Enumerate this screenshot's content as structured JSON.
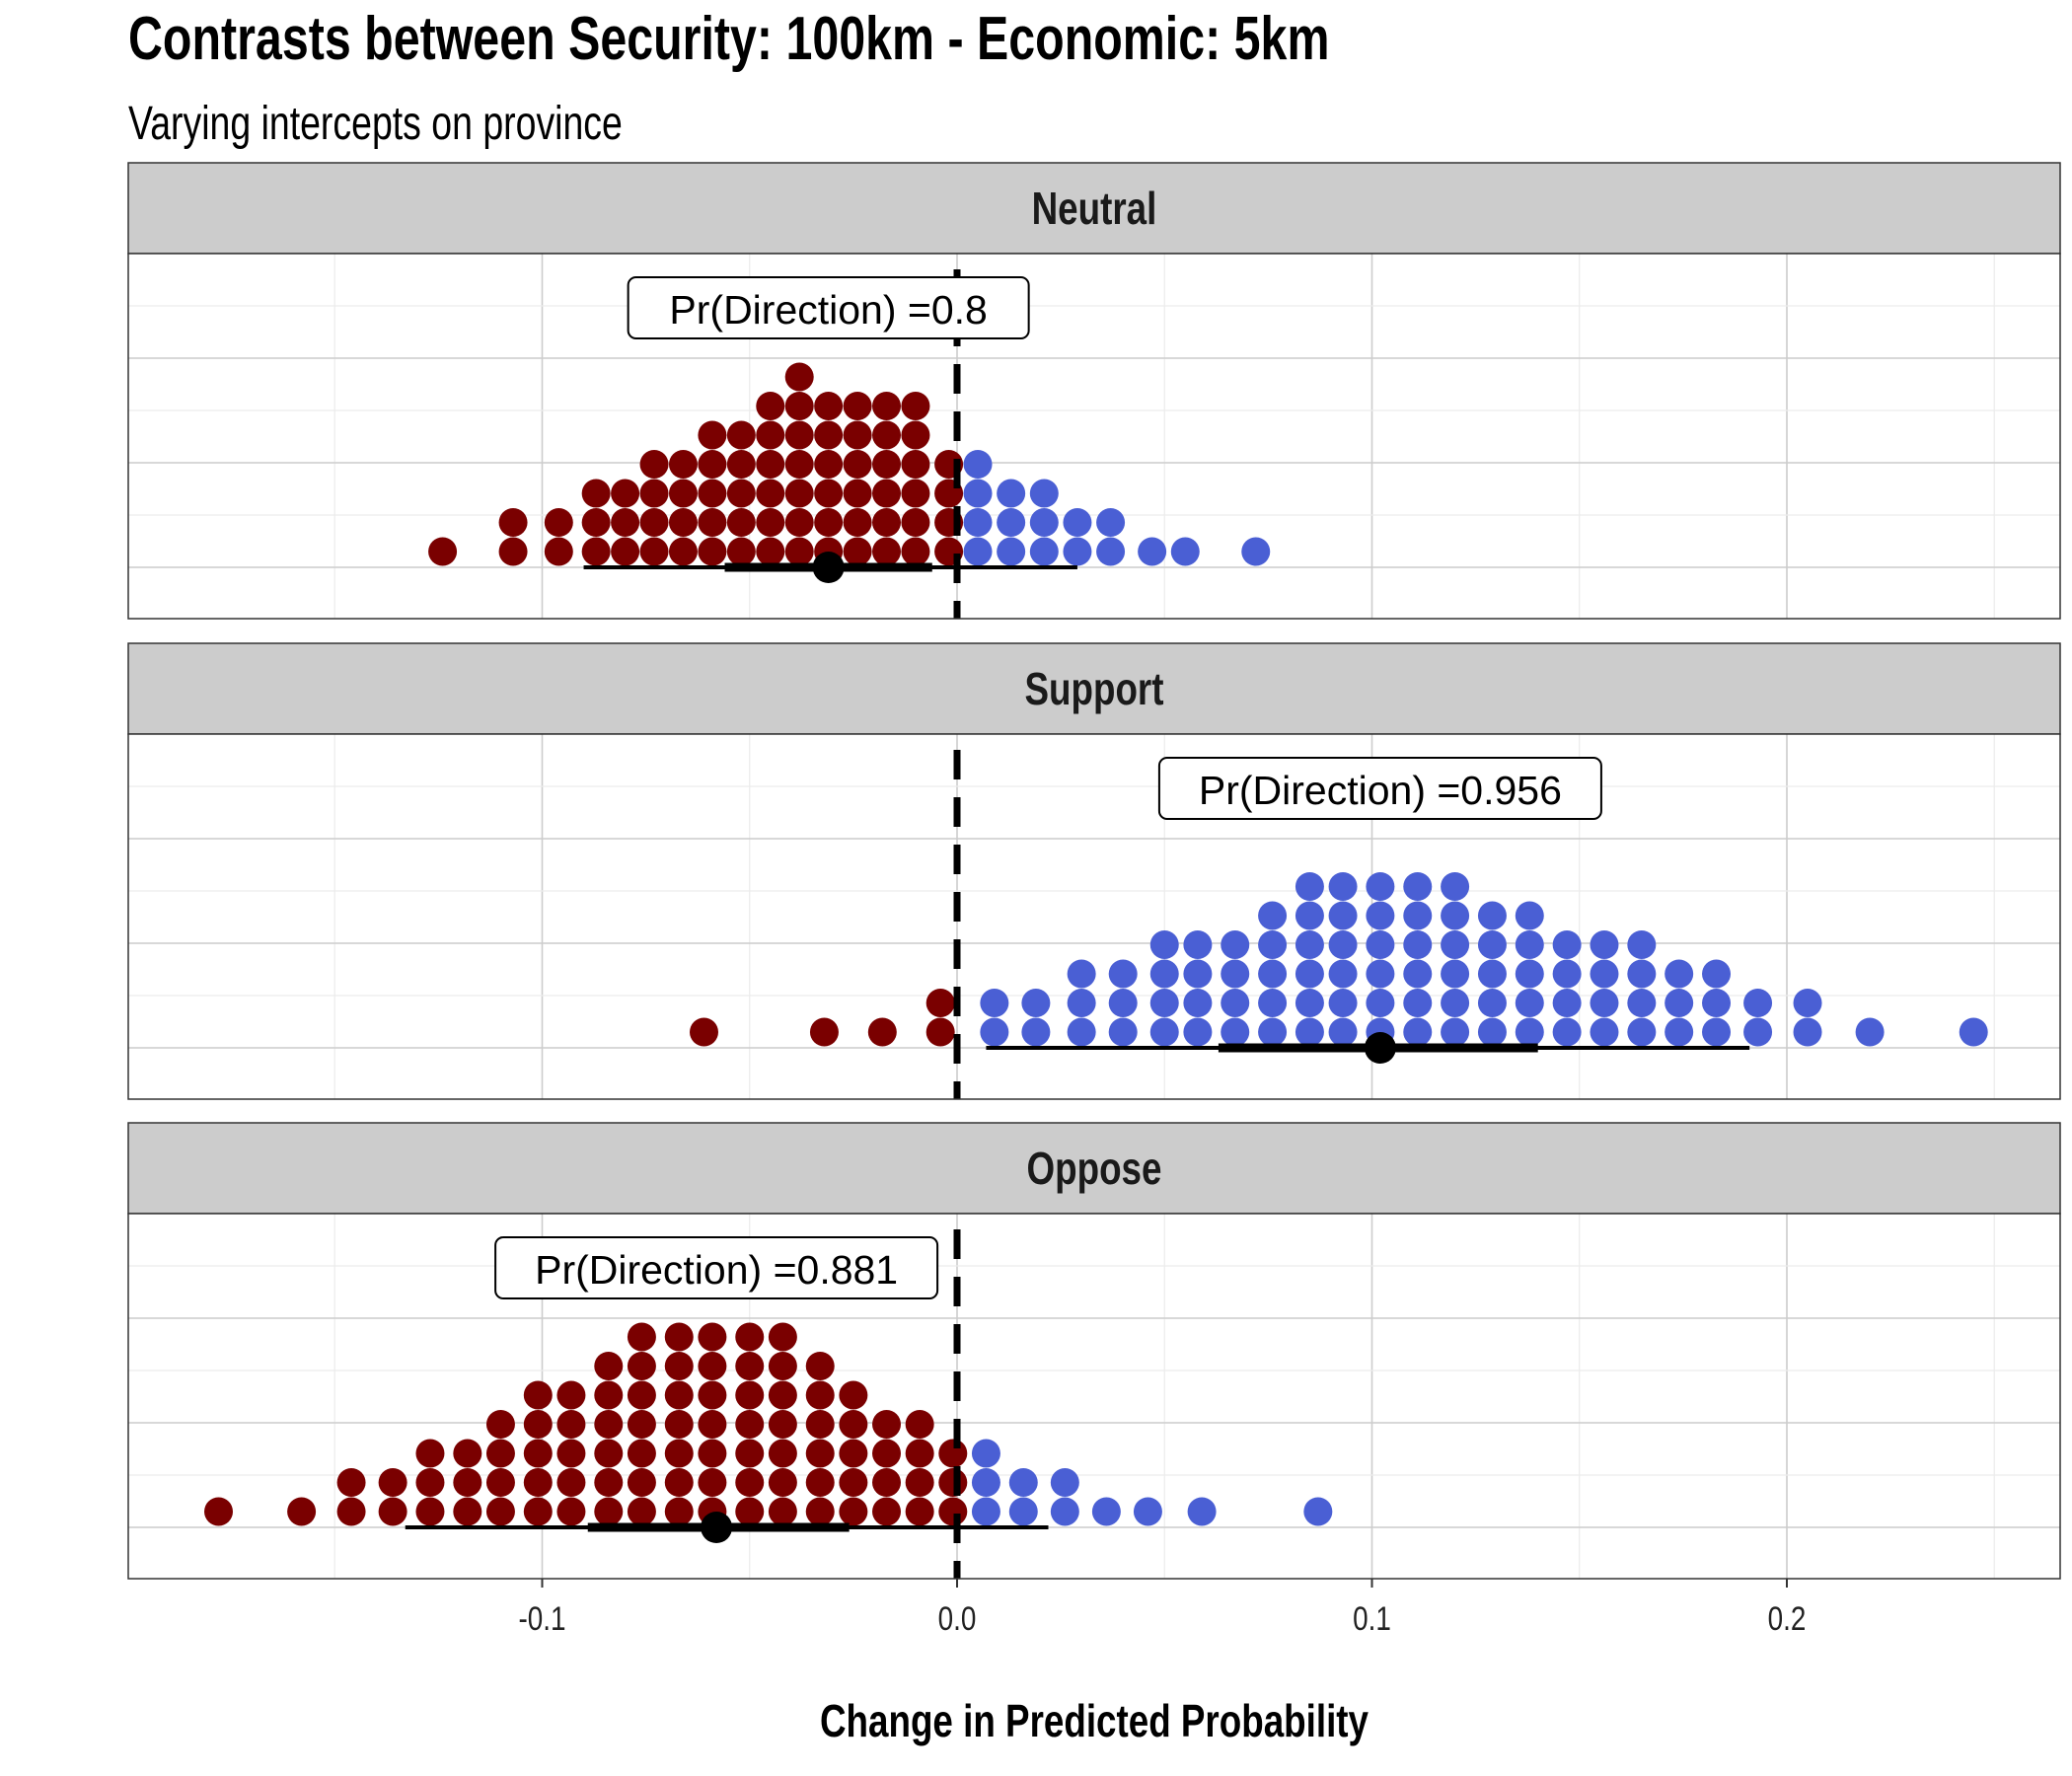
{
  "title": "Contrasts between Security: 100km - Economic: 5km",
  "subtitle": "Varying intercepts on province",
  "colors": {
    "negative": "#7a0000",
    "positive": "#4a5fd4",
    "strip_bg": "#cccccc",
    "grid_major": "#cccccc",
    "grid_minor": "#ececec",
    "interval": "#000000"
  },
  "chart_data": {
    "type": "dotplot",
    "xlabel": "Change in Predicted Probability",
    "xlim": [
      -0.2,
      0.265
    ],
    "x_ticks": [
      -0.1,
      0.0,
      0.1,
      0.2
    ],
    "x_tick_labels": [
      "-0.1",
      "0.0",
      "0.1",
      "0.2"
    ],
    "reference_line_x": 0,
    "grid": true,
    "facets": [
      {
        "name": "Neutral",
        "annotation": "Pr(Direction) =0.8",
        "annotation_x": -0.031,
        "point_estimate": -0.031,
        "interval_66": [
          -0.056,
          -0.006
        ],
        "interval_95": [
          -0.09,
          0.029
        ],
        "dot_stacks": [
          {
            "x": -0.124,
            "n": 1
          },
          {
            "x": -0.107,
            "n": 2
          },
          {
            "x": -0.096,
            "n": 2
          },
          {
            "x": -0.087,
            "n": 3
          },
          {
            "x": -0.08,
            "n": 3
          },
          {
            "x": -0.073,
            "n": 4
          },
          {
            "x": -0.066,
            "n": 4
          },
          {
            "x": -0.059,
            "n": 5
          },
          {
            "x": -0.052,
            "n": 5
          },
          {
            "x": -0.045,
            "n": 6
          },
          {
            "x": -0.038,
            "n": 7
          },
          {
            "x": -0.031,
            "n": 6
          },
          {
            "x": -0.024,
            "n": 6
          },
          {
            "x": -0.017,
            "n": 6
          },
          {
            "x": -0.01,
            "n": 6
          },
          {
            "x": -0.002,
            "n": 4
          },
          {
            "x": 0.005,
            "n": 4
          },
          {
            "x": 0.013,
            "n": 3
          },
          {
            "x": 0.021,
            "n": 3
          },
          {
            "x": 0.029,
            "n": 2
          },
          {
            "x": 0.037,
            "n": 2
          },
          {
            "x": 0.047,
            "n": 1
          },
          {
            "x": 0.055,
            "n": 1
          },
          {
            "x": 0.072,
            "n": 1
          }
        ]
      },
      {
        "name": "Support",
        "annotation": "Pr(Direction) =0.956",
        "annotation_x": 0.102,
        "point_estimate": 0.102,
        "interval_66": [
          0.063,
          0.14
        ],
        "interval_95": [
          0.007,
          0.191
        ],
        "dot_stacks": [
          {
            "x": -0.061,
            "n": 1
          },
          {
            "x": -0.032,
            "n": 1
          },
          {
            "x": -0.018,
            "n": 1
          },
          {
            "x": -0.004,
            "n": 2
          },
          {
            "x": 0.009,
            "n": 2
          },
          {
            "x": 0.019,
            "n": 2
          },
          {
            "x": 0.03,
            "n": 3
          },
          {
            "x": 0.04,
            "n": 3
          },
          {
            "x": 0.05,
            "n": 4
          },
          {
            "x": 0.058,
            "n": 4
          },
          {
            "x": 0.067,
            "n": 4
          },
          {
            "x": 0.076,
            "n": 5
          },
          {
            "x": 0.085,
            "n": 6
          },
          {
            "x": 0.093,
            "n": 6
          },
          {
            "x": 0.102,
            "n": 6
          },
          {
            "x": 0.111,
            "n": 6
          },
          {
            "x": 0.12,
            "n": 6
          },
          {
            "x": 0.129,
            "n": 5
          },
          {
            "x": 0.138,
            "n": 5
          },
          {
            "x": 0.147,
            "n": 4
          },
          {
            "x": 0.156,
            "n": 4
          },
          {
            "x": 0.165,
            "n": 4
          },
          {
            "x": 0.174,
            "n": 3
          },
          {
            "x": 0.183,
            "n": 3
          },
          {
            "x": 0.193,
            "n": 2
          },
          {
            "x": 0.205,
            "n": 2
          },
          {
            "x": 0.22,
            "n": 1
          },
          {
            "x": 0.245,
            "n": 1
          }
        ]
      },
      {
        "name": "Oppose",
        "annotation": "Pr(Direction) =0.881",
        "annotation_x": -0.058,
        "point_estimate": -0.058,
        "interval_66": [
          -0.089,
          -0.026
        ],
        "interval_95": [
          -0.133,
          0.022
        ],
        "dot_stacks": [
          {
            "x": -0.178,
            "n": 1
          },
          {
            "x": -0.158,
            "n": 1
          },
          {
            "x": -0.146,
            "n": 2
          },
          {
            "x": -0.136,
            "n": 2
          },
          {
            "x": -0.127,
            "n": 3
          },
          {
            "x": -0.118,
            "n": 3
          },
          {
            "x": -0.11,
            "n": 4
          },
          {
            "x": -0.101,
            "n": 5
          },
          {
            "x": -0.093,
            "n": 5
          },
          {
            "x": -0.084,
            "n": 6
          },
          {
            "x": -0.076,
            "n": 7
          },
          {
            "x": -0.067,
            "n": 7
          },
          {
            "x": -0.059,
            "n": 7
          },
          {
            "x": -0.05,
            "n": 7
          },
          {
            "x": -0.042,
            "n": 7
          },
          {
            "x": -0.033,
            "n": 6
          },
          {
            "x": -0.025,
            "n": 5
          },
          {
            "x": -0.017,
            "n": 4
          },
          {
            "x": -0.009,
            "n": 4
          },
          {
            "x": -0.001,
            "n": 3
          },
          {
            "x": 0.007,
            "n": 3
          },
          {
            "x": 0.016,
            "n": 2
          },
          {
            "x": 0.026,
            "n": 2
          },
          {
            "x": 0.036,
            "n": 1
          },
          {
            "x": 0.046,
            "n": 1
          },
          {
            "x": 0.059,
            "n": 1
          },
          {
            "x": 0.087,
            "n": 1
          }
        ]
      }
    ]
  }
}
